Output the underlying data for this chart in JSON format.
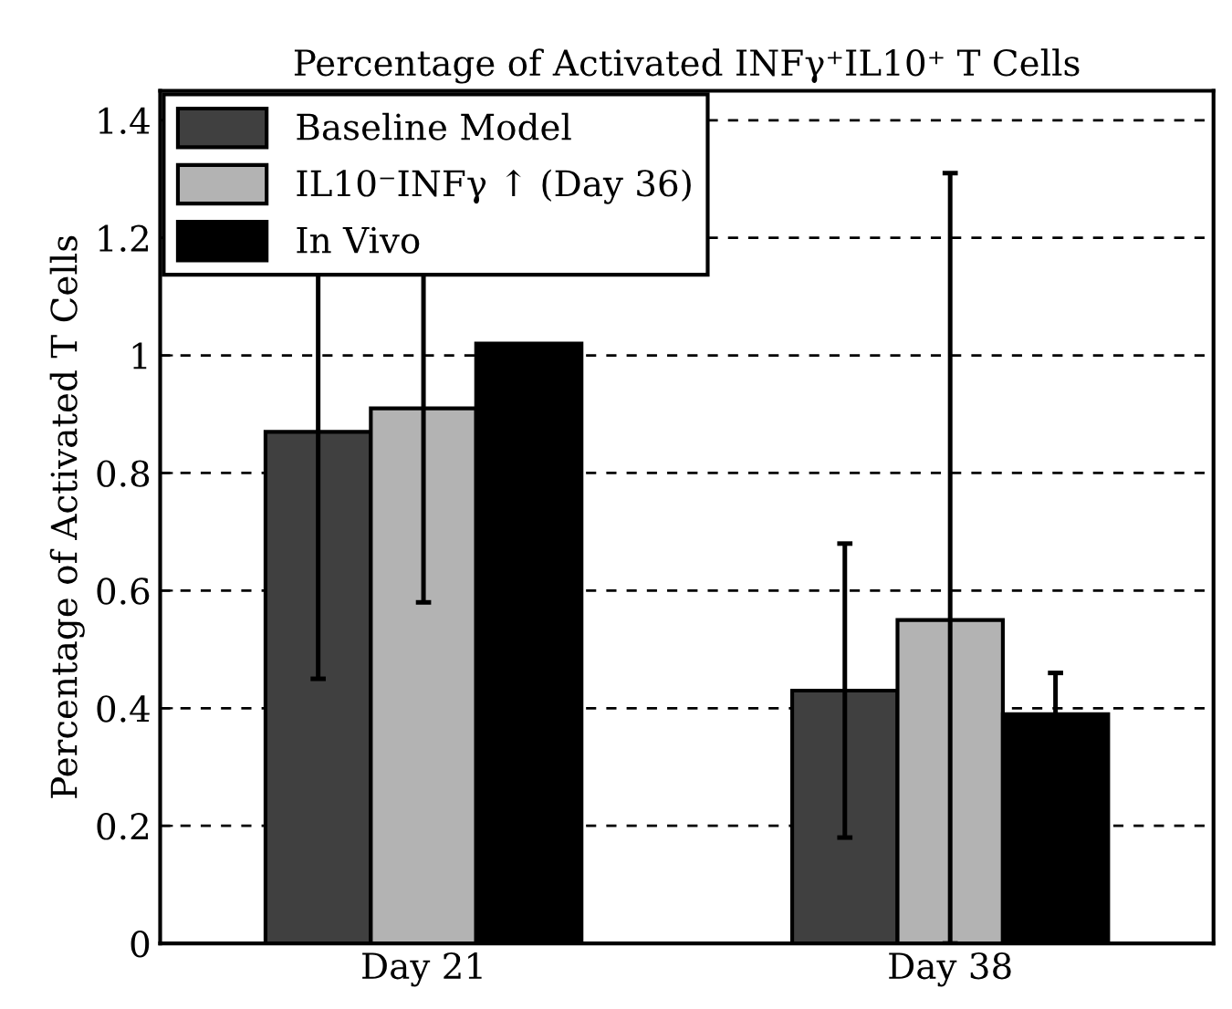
{
  "chart_data": {
    "type": "bar",
    "title": "Percentage of Activated INFγ⁺IL10⁺ T Cells",
    "ylabel": "Percentage of Activated T Cells",
    "categories": [
      "Day 21",
      "Day 38"
    ],
    "series": [
      {
        "name": "Baseline Model",
        "color": "#404040",
        "values": [
          0.87,
          0.43
        ],
        "errors": [
          0.42,
          0.25
        ]
      },
      {
        "name": "IL10⁻INFγ ↑ (Day 36)",
        "color": "#b3b3b3",
        "values": [
          0.91,
          0.55
        ],
        "errors": [
          0.33,
          [
            0,
            1.31
          ]
        ]
      },
      {
        "name": "In Vivo",
        "color": "#000000",
        "values": [
          1.02,
          0.39
        ],
        "errors": [
          null,
          0.07
        ]
      }
    ],
    "ylim": [
      0,
      1.45
    ],
    "yticks": [
      0,
      0.2,
      0.4,
      0.6,
      0.8,
      1,
      1.2,
      1.4
    ],
    "grid": "y",
    "legend": "top left"
  }
}
